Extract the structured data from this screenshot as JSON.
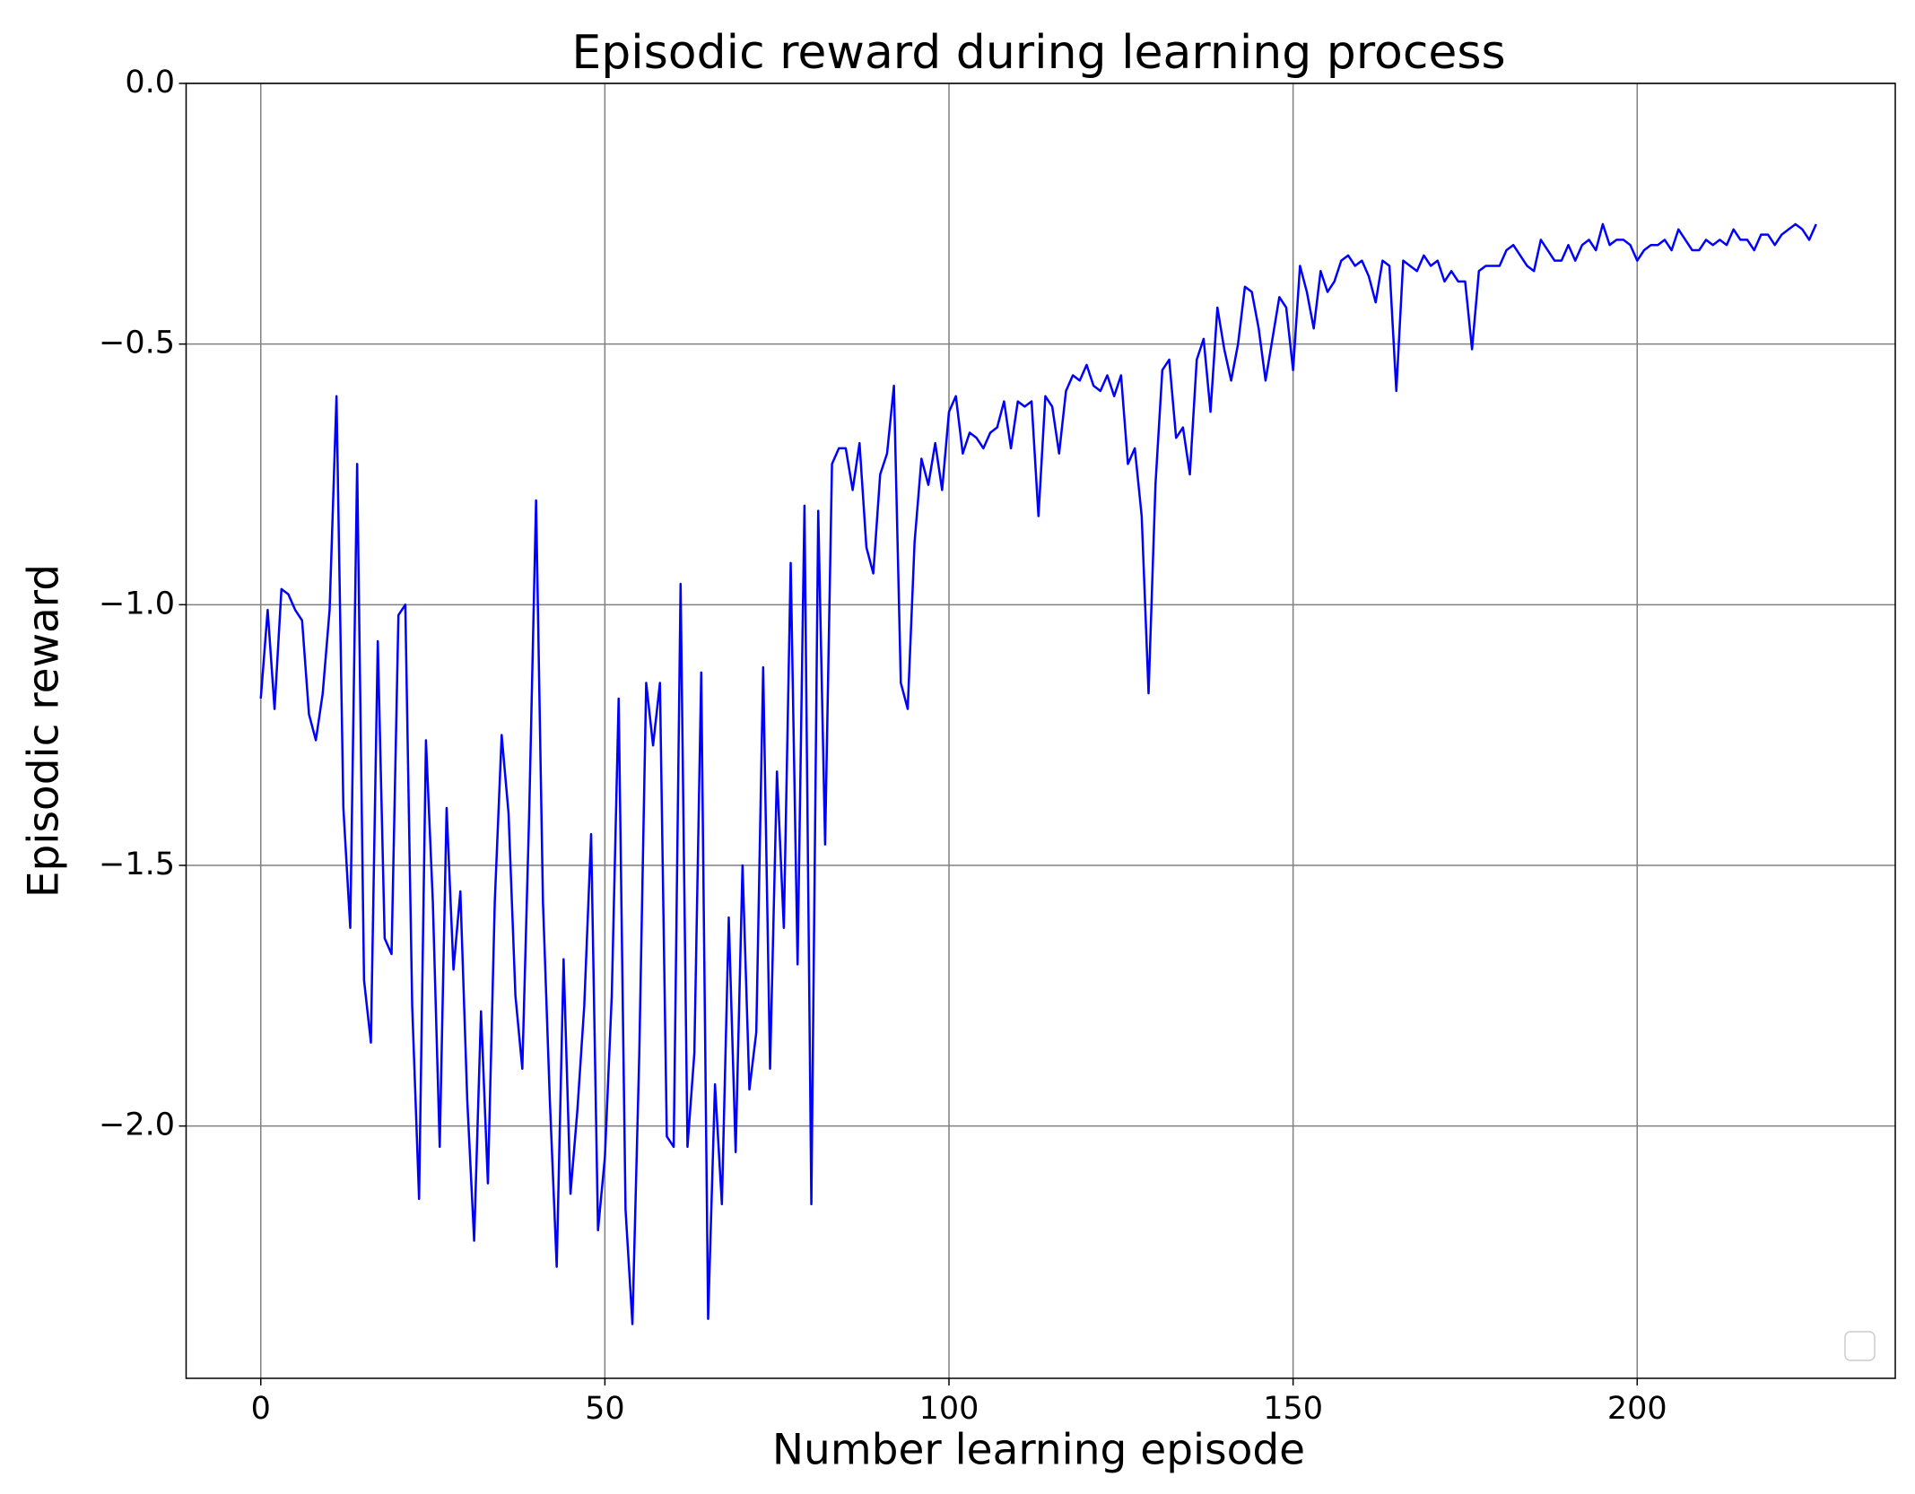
{
  "chart_data": {
    "type": "line",
    "title": "Episodic reward during learning process",
    "x_label": "Number learning episode",
    "y_label": "Episodic reward",
    "color": "#0000ff",
    "grid": true,
    "xlim": [
      -10.85,
      237.5
    ],
    "ylim": [
      -2.484,
      0
    ],
    "xticks": [
      0,
      50,
      100,
      150,
      200
    ],
    "yticks": [
      {
        "value": 0,
        "label": "0.0"
      },
      {
        "value": -0.5,
        "label": "−0.5"
      },
      {
        "value": -1.0,
        "label": "−1.0"
      },
      {
        "value": -1.5,
        "label": "−1.5"
      },
      {
        "value": -2.0,
        "label": "−2.0"
      }
    ],
    "x": [
      0,
      1,
      2,
      3,
      4,
      5,
      6,
      7,
      8,
      9,
      10,
      11,
      12,
      13,
      14,
      15,
      16,
      17,
      18,
      19,
      20,
      21,
      22,
      23,
      24,
      25,
      26,
      27,
      28,
      29,
      30,
      31,
      32,
      33,
      34,
      35,
      36,
      37,
      38,
      39,
      40,
      41,
      42,
      43,
      44,
      45,
      46,
      47,
      48,
      49,
      50,
      51,
      52,
      53,
      54,
      55,
      56,
      57,
      58,
      59,
      60,
      61,
      62,
      63,
      64,
      65,
      66,
      67,
      68,
      69,
      70,
      71,
      72,
      73,
      74,
      75,
      76,
      77,
      78,
      79,
      80,
      81,
      82,
      83,
      84,
      85,
      86,
      87,
      88,
      89,
      90,
      91,
      92,
      93,
      94,
      95,
      96,
      97,
      98,
      99,
      100,
      101,
      102,
      103,
      104,
      105,
      106,
      107,
      108,
      109,
      110,
      111,
      112,
      113,
      114,
      115,
      116,
      117,
      118,
      119,
      120,
      121,
      122,
      123,
      124,
      125,
      126,
      127,
      128,
      129,
      130,
      131,
      132,
      133,
      134,
      135,
      136,
      137,
      138,
      139,
      140,
      141,
      142,
      143,
      144,
      145,
      146,
      147,
      148,
      149,
      150,
      151,
      152,
      153,
      154,
      155,
      156,
      157,
      158,
      159,
      160,
      161,
      162,
      163,
      164,
      165,
      166,
      167,
      168,
      169,
      170,
      171,
      172,
      173,
      174,
      175,
      176,
      177,
      178,
      179,
      180,
      181,
      182,
      183,
      184,
      185,
      186,
      187,
      188,
      189,
      190,
      191,
      192,
      193,
      194,
      195,
      196,
      197,
      198,
      199,
      200,
      201,
      202,
      203,
      204,
      205,
      206,
      207,
      208,
      209,
      210,
      211,
      212,
      213,
      214,
      215,
      216,
      217,
      218,
      219,
      220,
      221,
      222,
      223,
      224,
      225,
      226
    ],
    "values": [
      -1.18,
      -1.01,
      -1.2,
      -0.97,
      -0.98,
      -1.01,
      -1.03,
      -1.21,
      -1.26,
      -1.17,
      -1.01,
      -0.6,
      -1.39,
      -1.62,
      -0.73,
      -1.72,
      -1.84,
      -1.07,
      -1.64,
      -1.67,
      -1.02,
      -1.0,
      -1.77,
      -2.14,
      -1.26,
      -1.57,
      -2.04,
      -1.39,
      -1.7,
      -1.55,
      -1.95,
      -2.22,
      -1.78,
      -2.11,
      -1.57,
      -1.25,
      -1.4,
      -1.75,
      -1.89,
      -1.4,
      -0.8,
      -1.57,
      -1.95,
      -2.27,
      -1.68,
      -2.13,
      -1.97,
      -1.77,
      -1.44,
      -2.2,
      -2.06,
      -1.75,
      -1.18,
      -2.16,
      -2.38,
      -1.86,
      -1.15,
      -1.27,
      -1.15,
      -2.02,
      -2.04,
      -0.96,
      -2.04,
      -1.86,
      -1.13,
      -2.37,
      -1.92,
      -2.15,
      -1.6,
      -2.05,
      -1.5,
      -1.93,
      -1.82,
      -1.12,
      -1.89,
      -1.32,
      -1.62,
      -0.92,
      -1.69,
      -0.81,
      -2.15,
      -0.82,
      -1.46,
      -0.73,
      -0.7,
      -0.7,
      -0.78,
      -0.69,
      -0.89,
      -0.94,
      -0.75,
      -0.71,
      -0.58,
      -1.15,
      -1.2,
      -0.88,
      -0.72,
      -0.77,
      -0.69,
      -0.78,
      -0.63,
      -0.6,
      -0.71,
      -0.67,
      -0.68,
      -0.7,
      -0.67,
      -0.66,
      -0.61,
      -0.7,
      -0.61,
      -0.62,
      -0.61,
      -0.83,
      -0.6,
      -0.62,
      -0.71,
      -0.59,
      -0.56,
      -0.57,
      -0.54,
      -0.58,
      -0.59,
      -0.56,
      -0.6,
      -0.56,
      -0.73,
      -0.7,
      -0.83,
      -1.17,
      -0.77,
      -0.55,
      -0.53,
      -0.68,
      -0.66,
      -0.75,
      -0.53,
      -0.49,
      -0.63,
      -0.43,
      -0.51,
      -0.57,
      -0.5,
      -0.39,
      -0.4,
      -0.47,
      -0.57,
      -0.49,
      -0.41,
      -0.43,
      -0.55,
      -0.35,
      -0.4,
      -0.47,
      -0.36,
      -0.4,
      -0.38,
      -0.34,
      -0.33,
      -0.35,
      -0.34,
      -0.37,
      -0.42,
      -0.34,
      -0.35,
      -0.59,
      -0.34,
      -0.35,
      -0.36,
      -0.33,
      -0.35,
      -0.34,
      -0.38,
      -0.36,
      -0.38,
      -0.38,
      -0.51,
      -0.36,
      -0.35,
      -0.35,
      -0.35,
      -0.32,
      -0.31,
      -0.33,
      -0.35,
      -0.36,
      -0.3,
      -0.32,
      -0.34,
      -0.34,
      -0.31,
      -0.34,
      -0.31,
      -0.3,
      -0.32,
      -0.27,
      -0.31,
      -0.3,
      -0.3,
      -0.31,
      -0.34,
      -0.32,
      -0.31,
      -0.31,
      -0.3,
      -0.32,
      -0.28,
      -0.3,
      -0.32,
      -0.32,
      -0.3,
      -0.31,
      -0.3,
      -0.31,
      -0.28,
      -0.3,
      -0.3,
      -0.32,
      -0.29,
      -0.29,
      -0.31,
      -0.29,
      -0.28,
      -0.27,
      -0.28,
      -0.3,
      -0.27
    ]
  }
}
